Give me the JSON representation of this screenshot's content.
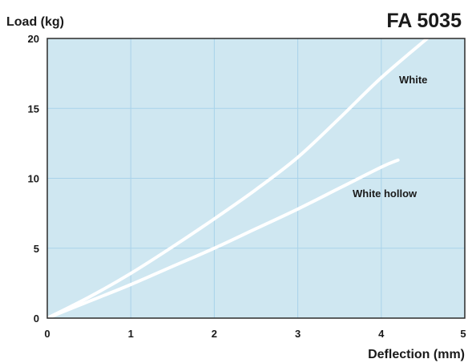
{
  "chart_data": {
    "type": "line",
    "title": "FA 5035",
    "xlabel": "Deflection (mm)",
    "ylabel": "Load (kg)",
    "xlim": [
      0,
      5
    ],
    "ylim": [
      0,
      20
    ],
    "x_ticks": [
      0,
      1,
      2,
      3,
      4,
      5
    ],
    "y_ticks": [
      0,
      5,
      10,
      15,
      20
    ],
    "x_tick_labels": [
      "0",
      "1",
      "2",
      "3",
      "4",
      "5"
    ],
    "y_tick_labels": [
      "0",
      "5",
      "10",
      "15",
      "20"
    ],
    "grid": true,
    "legend": "none (series labeled inline)",
    "series": [
      {
        "name": "White",
        "x": [
          0,
          0.5,
          1,
          1.5,
          2,
          2.5,
          3,
          3.5,
          4,
          4.55
        ],
        "y": [
          0,
          1.5,
          3.2,
          5.1,
          7.1,
          9.2,
          11.5,
          14.3,
          17.2,
          20
        ]
      },
      {
        "name": "White hollow",
        "x": [
          0,
          0.5,
          1,
          1.5,
          2,
          2.5,
          3,
          3.5,
          4,
          4.2
        ],
        "y": [
          0,
          1.2,
          2.4,
          3.7,
          5.0,
          6.4,
          7.8,
          9.3,
          10.8,
          11.3
        ]
      }
    ],
    "colors": {
      "plot_background": "#cfe7f1",
      "grid": "#a9d3ea",
      "frame": "#2b2b2b",
      "series_line": "#ffffff",
      "text": "#1a1a1a"
    }
  }
}
